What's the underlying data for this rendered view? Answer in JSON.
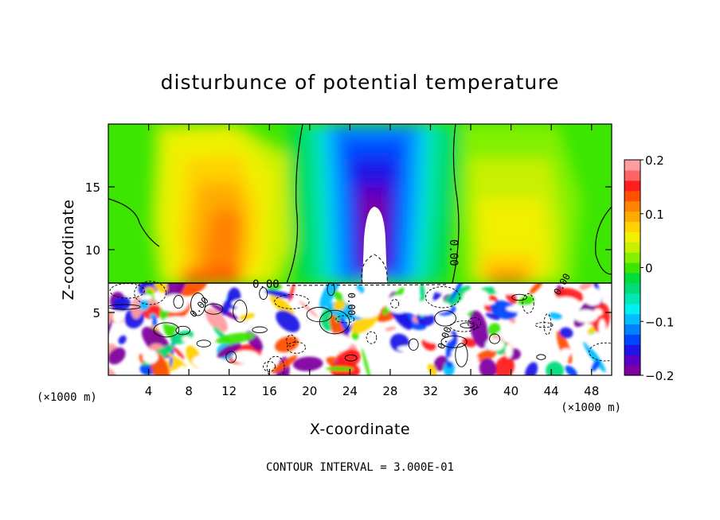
{
  "chart_data": {
    "type": "heatmap",
    "title": "disturbunce of potential temperature",
    "xlabel": "X-coordinate",
    "ylabel": "Z-coordinate",
    "x_unit": "(×1000 m)",
    "y_unit": "(×1000 m)",
    "xlim": [
      0,
      50
    ],
    "ylim": [
      0,
      20
    ],
    "x_ticks": [
      4,
      8,
      12,
      16,
      20,
      24,
      28,
      32,
      36,
      40,
      44,
      48
    ],
    "y_ticks": [
      5,
      10,
      15
    ],
    "colorbar": {
      "range": [
        -0.2,
        0.2
      ],
      "tick_values": [
        0.2,
        0.1,
        0,
        -0.1,
        -0.2
      ],
      "tick_labels": [
        "0.2",
        "0.1",
        "0",
        "−0.1",
        "−0.2"
      ],
      "colors": [
        "#7f00a0",
        "#5a00c8",
        "#1e14e6",
        "#0046ff",
        "#0082ff",
        "#00beff",
        "#00f0f0",
        "#00e6b4",
        "#00dc78",
        "#00dc3c",
        "#3ce600",
        "#82f000",
        "#c8f000",
        "#f0f000",
        "#ffd200",
        "#ffaa00",
        "#ff8200",
        "#ff5000",
        "#ff1e1e",
        "#ff6464",
        "#ff9ea0"
      ]
    },
    "contour_labels": [
      "0.00",
      "0.00",
      "0.00",
      "0.00",
      "0.00",
      "0.00"
    ],
    "contour_interval_text": "CONTOUR INTERVAL = 3.000E-01",
    "grid": false
  }
}
